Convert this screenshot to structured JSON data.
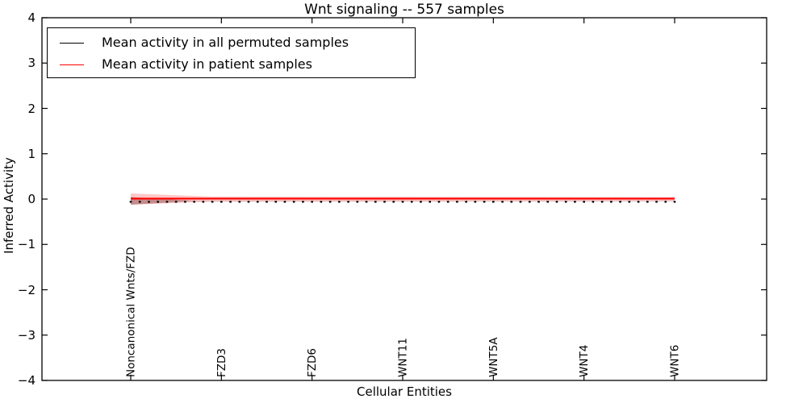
{
  "figure": {
    "background": "#ffffff",
    "frame_color": "#000000"
  },
  "chart_data": {
    "type": "line",
    "title": "Wnt signaling -- 557 samples",
    "xlabel": "Cellular Entities",
    "ylabel": "Inferred Activity",
    "ylim": [
      -4,
      4
    ],
    "y_ticks": [
      4,
      3,
      2,
      1,
      0,
      -1,
      -2,
      -3,
      -4
    ],
    "y_tick_labels": [
      "4",
      "3",
      "2",
      "1",
      "0",
      "−1",
      "−2",
      "−3",
      "−4"
    ],
    "x_tick_labels": [
      "Noncanonical Wnts/FZD",
      "FZD3",
      "FZD6",
      "WNT11",
      "WNT5A",
      "WNT4",
      "WNT6"
    ],
    "n_points": 61,
    "label_every": 10,
    "grid": false,
    "tick_direction": "in",
    "series": [
      {
        "name": "Mean activity in all permuted samples",
        "color": "#000000",
        "line_style": "dotted-markers",
        "marker": "square",
        "constant_value": -0.06,
        "values_at_labels": [
          -0.06,
          -0.06,
          -0.06,
          -0.06,
          -0.06,
          -0.06,
          -0.06
        ]
      },
      {
        "name": "Mean activity in patient samples",
        "color": "#ff0000",
        "line_style": "solid",
        "constant_value": 0.01,
        "values_at_labels": [
          0.01,
          0.01,
          0.01,
          0.01,
          0.01,
          0.01,
          0.01
        ]
      }
    ],
    "bands": [
      {
        "name": "permuted-std-band",
        "color": "rgba(70,70,70,0.40)",
        "center": -0.04,
        "halfwidth_profile": [
          [
            0,
            0.085
          ],
          [
            0.115,
            0.004
          ],
          [
            1,
            0.004
          ]
        ]
      },
      {
        "name": "patient-std-band",
        "color": "rgba(255,0,0,0.22)",
        "center": 0.0,
        "halfwidth_profile": [
          [
            0,
            0.125
          ],
          [
            0.15,
            0.055
          ],
          [
            1,
            0.045
          ]
        ]
      }
    ],
    "legend": {
      "position": "upper left",
      "entries": [
        {
          "label": "Mean activity in all permuted samples",
          "color": "#000000"
        },
        {
          "label": "Mean activity in patient samples",
          "color": "#ff0000"
        }
      ]
    }
  }
}
